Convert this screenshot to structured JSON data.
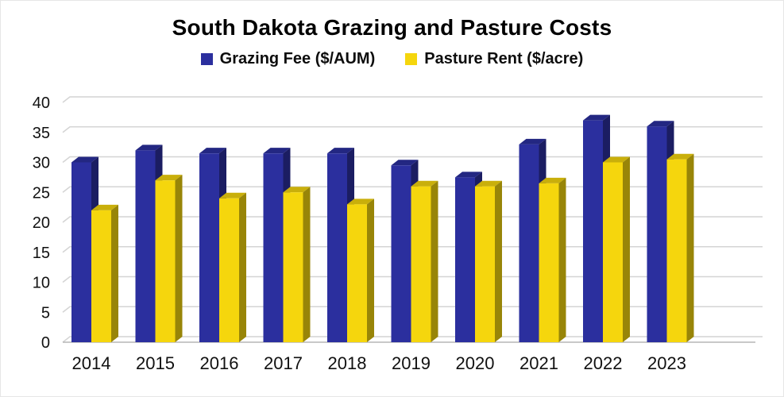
{
  "title": "South Dakota Grazing and Pasture Costs",
  "legend": {
    "items": [
      {
        "label": "Grazing Fee ($/AUM)",
        "color": "#2B2F9E"
      },
      {
        "label": "Pasture Rent ($/acre)",
        "color": "#F5D60D"
      }
    ]
  },
  "chart_data": {
    "type": "bar",
    "style": "3d-clustered-column",
    "title": "South Dakota Grazing and Pasture Costs",
    "xlabel": "",
    "ylabel": "",
    "categories": [
      "2014",
      "2015",
      "2016",
      "2017",
      "2018",
      "2019",
      "2020",
      "2021",
      "2022",
      "2023"
    ],
    "series": [
      {
        "name": "Grazing Fee ($/AUM)",
        "color": "#2B2F9E",
        "values": [
          30,
          32,
          31.5,
          31.5,
          31.5,
          29.5,
          27.5,
          33,
          37,
          36
        ]
      },
      {
        "name": "Pasture Rent ($/acre)",
        "color": "#F5D60D",
        "values": [
          22,
          27,
          24,
          25,
          23,
          26,
          26,
          26.5,
          30,
          30.5
        ]
      }
    ],
    "ylim": [
      0,
      40
    ],
    "yticks": [
      0,
      5,
      10,
      15,
      20,
      25,
      30,
      35,
      40
    ],
    "grid": true,
    "legend_position": "top"
  }
}
